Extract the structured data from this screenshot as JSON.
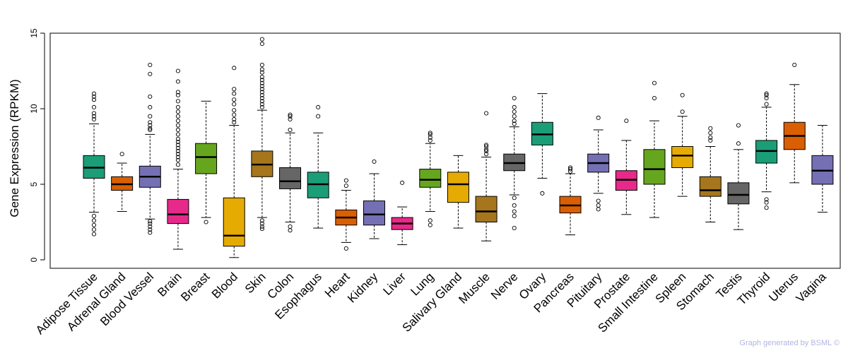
{
  "chart_data": {
    "type": "boxplot",
    "title": "",
    "xlabel": "",
    "ylabel": "Gene Expression (RPKM)",
    "ylim": [
      0,
      15
    ],
    "yticks": [
      0,
      5,
      10,
      15
    ],
    "highlight_color": "#ff0000",
    "footer": "Graph generated by BSML ©",
    "footer_color": "#b3b3e6",
    "series": [
      {
        "name": "Adipose Tissue",
        "color": "#1b9e77",
        "q1": 5.4,
        "median": 6.1,
        "q3": 6.9,
        "whisker_low": 3.15,
        "whisker_high": 9.0,
        "outliers": [
          2.9,
          2.6,
          2.3,
          2.0,
          1.7,
          9.3,
          9.5,
          9.7,
          10.1,
          10.6,
          10.8,
          11.0
        ]
      },
      {
        "name": "Adrenal Gland",
        "color": "#d95f02",
        "q1": 4.6,
        "median": 5.0,
        "q3": 5.5,
        "whisker_low": 3.2,
        "whisker_high": 6.4,
        "outliers": [
          7.0
        ]
      },
      {
        "name": "Blood Vessel",
        "color": "#7570b3",
        "q1": 4.8,
        "median": 5.5,
        "q3": 6.2,
        "whisker_low": 2.7,
        "whisker_high": 8.3,
        "outliers": [
          2.55,
          2.4,
          2.2,
          2.0,
          1.8,
          8.6,
          8.7,
          8.9,
          9.1,
          9.5,
          10.1,
          10.8,
          12.3,
          12.9
        ]
      },
      {
        "name": "Brain",
        "color": "#e7298a",
        "q1": 2.4,
        "median": 3.0,
        "q3": 4.0,
        "whisker_low": 0.7,
        "whisker_high": 6.0,
        "highlight": true,
        "outliers": [
          6.3,
          6.6,
          6.8,
          7.0,
          7.2,
          7.4,
          7.6,
          7.8,
          8.0,
          8.3,
          8.6,
          8.9,
          9.2,
          9.5,
          9.8,
          10.1,
          10.5,
          10.9,
          11.1,
          11.8,
          12.5
        ]
      },
      {
        "name": "Breast",
        "color": "#66a61e",
        "q1": 5.7,
        "median": 6.8,
        "q3": 7.7,
        "whisker_low": 2.8,
        "whisker_high": 10.5,
        "outliers": [
          2.5
        ]
      },
      {
        "name": "Blood",
        "color": "#e6ab02",
        "q1": 0.9,
        "median": 1.6,
        "q3": 4.1,
        "whisker_low": 0.15,
        "whisker_high": 8.9,
        "outliers": [
          9.1,
          9.3,
          9.6,
          9.9,
          10.3,
          10.6,
          11.0,
          11.3,
          12.7
        ]
      },
      {
        "name": "Skin",
        "color": "#a6761d",
        "q1": 5.5,
        "median": 6.3,
        "q3": 7.2,
        "whisker_low": 2.8,
        "whisker_high": 9.9,
        "outliers": [
          2.6,
          2.4,
          2.2,
          2.05,
          10.1,
          10.3,
          10.5,
          10.7,
          10.9,
          11.1,
          11.3,
          11.5,
          11.7,
          11.9,
          12.1,
          12.4,
          12.6,
          12.9,
          14.3,
          14.6
        ]
      },
      {
        "name": "Colon",
        "color": "#666666",
        "q1": 4.7,
        "median": 5.2,
        "q3": 6.1,
        "whisker_low": 2.5,
        "whisker_high": 8.4,
        "outliers": [
          2.2,
          1.95,
          8.6,
          9.3,
          9.5,
          9.6
        ]
      },
      {
        "name": "Esophagus",
        "color": "#1b9e77",
        "q1": 4.1,
        "median": 5.0,
        "q3": 5.8,
        "whisker_low": 2.1,
        "whisker_high": 8.4,
        "outliers": [
          9.5,
          10.1
        ]
      },
      {
        "name": "Heart",
        "color": "#d95f02",
        "q1": 2.3,
        "median": 2.8,
        "q3": 3.3,
        "whisker_low": 1.15,
        "whisker_high": 4.6,
        "outliers": [
          0.75,
          4.9,
          5.25
        ]
      },
      {
        "name": "Kidney",
        "color": "#7570b3",
        "q1": 2.3,
        "median": 3.0,
        "q3": 3.9,
        "whisker_low": 1.4,
        "whisker_high": 5.7,
        "outliers": [
          6.5
        ]
      },
      {
        "name": "Liver",
        "color": "#e7298a",
        "q1": 2.0,
        "median": 2.4,
        "q3": 2.8,
        "whisker_low": 1.0,
        "whisker_high": 3.5,
        "outliers": [
          5.1
        ]
      },
      {
        "name": "Lung",
        "color": "#66a61e",
        "q1": 4.8,
        "median": 5.3,
        "q3": 6.0,
        "whisker_low": 3.2,
        "whisker_high": 7.7,
        "outliers": [
          2.6,
          2.3,
          7.9,
          8.1,
          8.3,
          8.4
        ]
      },
      {
        "name": "Salivary Gland",
        "color": "#e6ab02",
        "q1": 3.8,
        "median": 5.0,
        "q3": 5.8,
        "whisker_low": 2.1,
        "whisker_high": 6.9,
        "outliers": []
      },
      {
        "name": "Muscle",
        "color": "#a6761d",
        "q1": 2.5,
        "median": 3.2,
        "q3": 4.2,
        "whisker_low": 1.25,
        "whisker_high": 6.8,
        "outliers": [
          7.0,
          7.2,
          7.3,
          7.5,
          7.6,
          9.7
        ]
      },
      {
        "name": "Nerve",
        "color": "#666666",
        "q1": 5.9,
        "median": 6.4,
        "q3": 7.0,
        "whisker_low": 4.3,
        "whisker_high": 8.8,
        "outliers": [
          4.1,
          3.6,
          3.2,
          2.9,
          2.1,
          9.0,
          9.2,
          9.5,
          9.8,
          10.1,
          10.7
        ]
      },
      {
        "name": "Ovary",
        "color": "#1b9e77",
        "q1": 7.6,
        "median": 8.3,
        "q3": 9.1,
        "whisker_low": 5.4,
        "whisker_high": 11.0,
        "outliers": [
          4.4
        ]
      },
      {
        "name": "Pancreas",
        "color": "#d95f02",
        "q1": 3.1,
        "median": 3.6,
        "q3": 4.2,
        "whisker_low": 1.65,
        "whisker_high": 5.7,
        "outliers": [
          5.85,
          6.0,
          6.1
        ]
      },
      {
        "name": "Pituitary",
        "color": "#7570b3",
        "q1": 5.8,
        "median": 6.4,
        "q3": 7.0,
        "whisker_low": 4.4,
        "whisker_high": 8.6,
        "outliers": [
          3.9,
          3.6,
          3.35,
          9.4
        ]
      },
      {
        "name": "Prostate",
        "color": "#e7298a",
        "q1": 4.6,
        "median": 5.3,
        "q3": 5.9,
        "whisker_low": 3.0,
        "whisker_high": 7.9,
        "outliers": [
          9.2
        ]
      },
      {
        "name": "Small Intestine",
        "color": "#66a61e",
        "q1": 5.0,
        "median": 6.0,
        "q3": 7.3,
        "whisker_low": 2.8,
        "whisker_high": 9.2,
        "outliers": [
          10.7,
          11.7
        ]
      },
      {
        "name": "Spleen",
        "color": "#e6ab02",
        "q1": 6.1,
        "median": 6.9,
        "q3": 7.5,
        "whisker_low": 4.2,
        "whisker_high": 9.5,
        "outliers": [
          9.8,
          10.9
        ]
      },
      {
        "name": "Stomach",
        "color": "#a6761d",
        "q1": 4.2,
        "median": 4.6,
        "q3": 5.5,
        "whisker_low": 2.5,
        "whisker_high": 7.5,
        "outliers": [
          7.9,
          8.1,
          8.4,
          8.7
        ]
      },
      {
        "name": "Testis",
        "color": "#666666",
        "q1": 3.7,
        "median": 4.3,
        "q3": 5.1,
        "whisker_low": 2.0,
        "whisker_high": 7.3,
        "outliers": [
          7.7,
          8.9
        ]
      },
      {
        "name": "Thyroid",
        "color": "#1b9e77",
        "q1": 6.4,
        "median": 7.2,
        "q3": 7.9,
        "whisker_low": 4.5,
        "whisker_high": 10.1,
        "outliers": [
          4.0,
          3.8,
          3.45,
          10.3,
          10.7,
          10.9,
          11.0
        ]
      },
      {
        "name": "Uterus",
        "color": "#d95f02",
        "q1": 7.3,
        "median": 8.2,
        "q3": 9.1,
        "whisker_low": 5.1,
        "whisker_high": 11.6,
        "outliers": [
          12.9
        ]
      },
      {
        "name": "Vagina",
        "color": "#7570b3",
        "q1": 5.0,
        "median": 5.9,
        "q3": 6.9,
        "whisker_low": 3.15,
        "whisker_high": 8.9,
        "outliers": []
      }
    ]
  }
}
